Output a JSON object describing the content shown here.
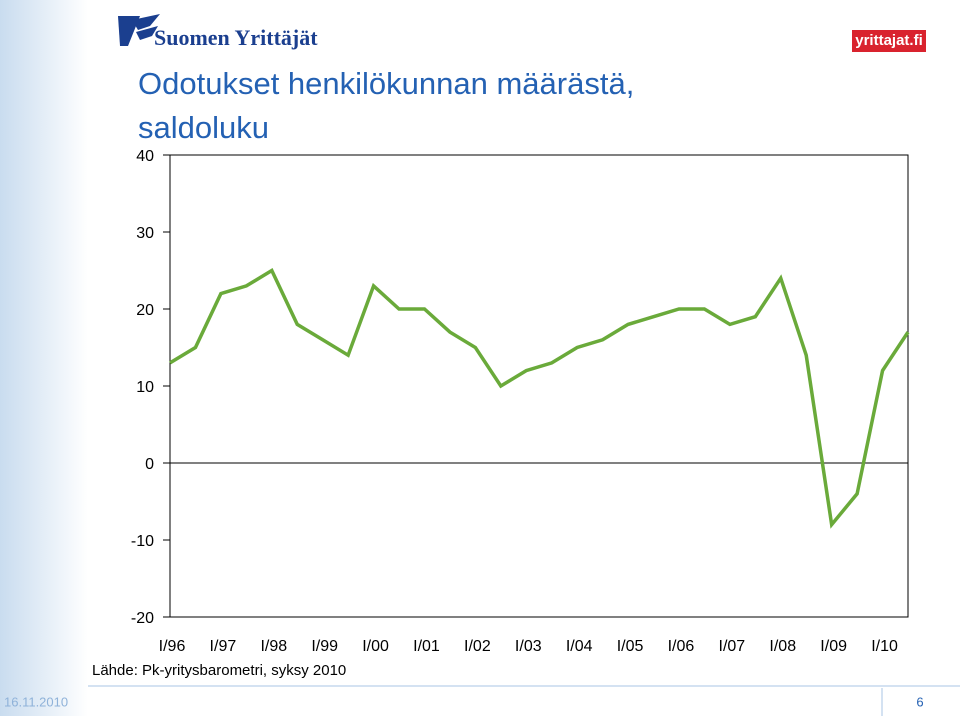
{
  "header": {
    "logo": "Suomen Yrittäjät",
    "badge": "yrittajat.fi"
  },
  "chart_data": {
    "type": "line",
    "title": [
      "Odotukset henkilökunnan määrästä,",
      "saldoluku"
    ],
    "categories": [
      "I/96",
      null,
      "I/97",
      null,
      "I/98",
      null,
      "I/99",
      null,
      "I/00",
      null,
      "I/01",
      null,
      "I/02",
      null,
      "I/03",
      null,
      "I/04",
      null,
      "I/05",
      null,
      "I/06",
      null,
      "I/07",
      null,
      "I/08",
      null,
      "I/09",
      null,
      "I/10",
      null
    ],
    "values": [
      13,
      15,
      22,
      23,
      25,
      18,
      16,
      14,
      23,
      20,
      20,
      17,
      15,
      10,
      12,
      13,
      15,
      16,
      18,
      19,
      20,
      20,
      18,
      19,
      24,
      14,
      -8,
      -4,
      12,
      17
    ],
    "color": "#6aaa3a",
    "ylim": [
      -20,
      40
    ],
    "yticks": [
      -20,
      -10,
      0,
      10,
      20,
      30,
      40
    ],
    "source": "Lähde: Pk-yritysbarometri, syksy 2010"
  },
  "footer": {
    "date": "16.11.2010",
    "page": "6"
  }
}
